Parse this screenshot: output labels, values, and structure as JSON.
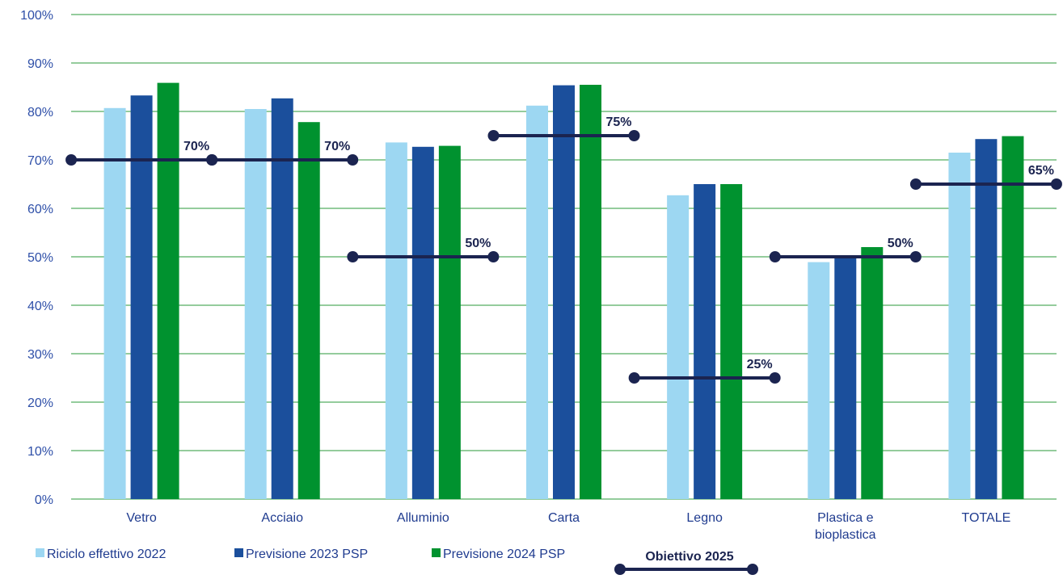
{
  "chart_data": {
    "type": "bar",
    "categories": [
      "Vetro",
      "Acciaio",
      "Alluminio",
      "Carta",
      "Legno",
      "Plastica e bioplastica",
      "TOTALE"
    ],
    "category_lines": [
      [
        "Vetro"
      ],
      [
        "Acciaio"
      ],
      [
        "Alluminio"
      ],
      [
        "Carta"
      ],
      [
        "Legno"
      ],
      [
        "Plastica e",
        "bioplastica"
      ],
      [
        "TOTALE"
      ]
    ],
    "series": [
      {
        "name": "Riciclo effettivo 2022",
        "color": "#9dd7f2",
        "values": [
          80.7,
          80.5,
          73.6,
          81.2,
          62.7,
          48.9,
          71.5
        ]
      },
      {
        "name": "Previsione 2023 PSP",
        "color": "#1b4f9c",
        "values": [
          83.3,
          82.7,
          72.7,
          85.4,
          65.0,
          50.3,
          74.3
        ]
      },
      {
        "name": "Previsione 2024 PSP",
        "color": "#00922f",
        "values": [
          85.9,
          77.8,
          72.9,
          85.5,
          65.0,
          52.0,
          74.9
        ]
      }
    ],
    "targets": {
      "name": "Obiettivo 2025",
      "color": "#1b2450",
      "values": [
        70,
        70,
        50,
        75,
        25,
        50,
        65
      ],
      "labels": [
        "70%",
        "70%",
        "50%",
        "75%",
        "25%",
        "50%",
        "65%"
      ]
    },
    "y_ticks": [
      "0%",
      "10%",
      "20%",
      "30%",
      "40%",
      "50%",
      "60%",
      "70%",
      "80%",
      "90%",
      "100%"
    ],
    "ylim": [
      0,
      100
    ],
    "grid": true,
    "grid_color": "#2a9a3a",
    "legend_position": "bottom-left"
  }
}
